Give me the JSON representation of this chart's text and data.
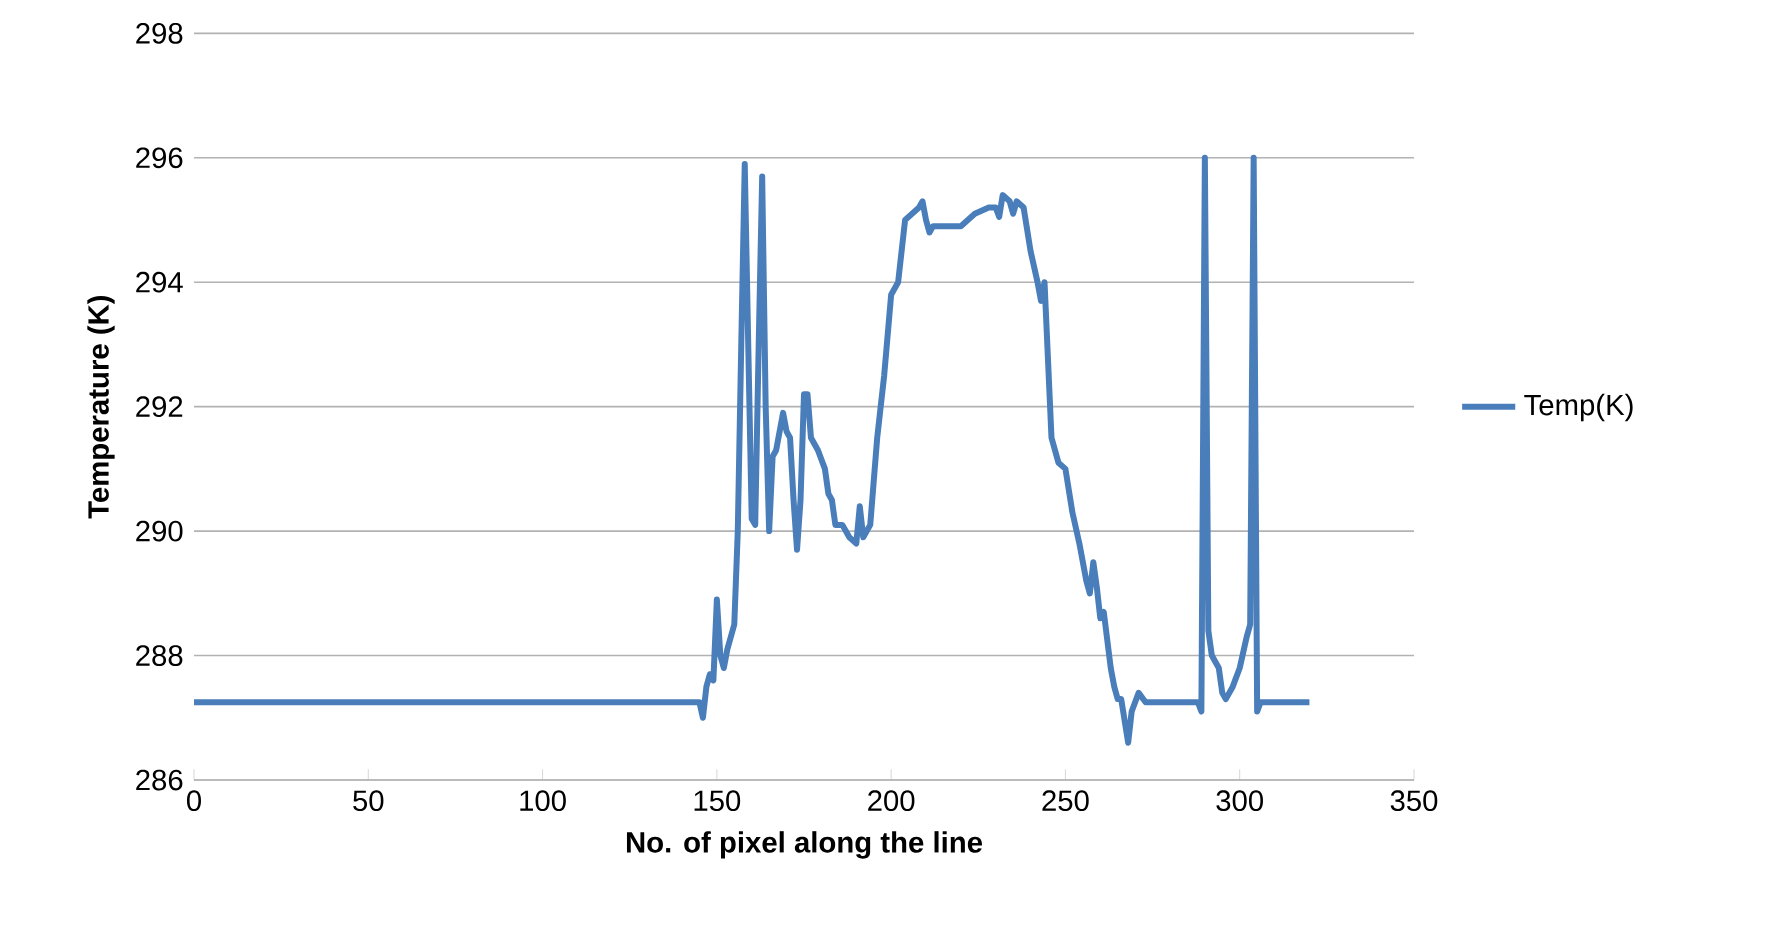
{
  "chart_data": {
    "type": "line",
    "xlabel": "No. of pixel along the line",
    "ylabel": "Temperature (K)",
    "xlim": [
      0,
      350
    ],
    "ylim": [
      286,
      298
    ],
    "xticks": [
      0,
      50,
      100,
      150,
      200,
      250,
      300,
      350
    ],
    "yticks": [
      286,
      288,
      290,
      292,
      294,
      296,
      298
    ],
    "grid": "y",
    "legend": "right",
    "marker": "none",
    "line_style": "solid",
    "series": [
      {
        "name": "Temp(K)",
        "color": "#4a7ebb",
        "x": [
          0,
          145,
          146,
          147,
          148,
          149,
          150,
          151,
          152,
          153,
          155,
          156,
          157,
          158,
          159,
          160,
          161,
          162,
          163,
          164,
          165,
          166,
          167,
          169,
          170,
          171,
          172,
          173,
          174,
          175,
          176,
          177,
          179,
          181,
          182,
          183,
          184,
          186,
          188,
          190,
          191,
          192,
          194,
          196,
          198,
          200,
          202,
          204,
          206,
          208,
          209,
          210,
          211,
          212,
          216,
          220,
          224,
          228,
          230,
          231,
          232,
          234,
          235,
          236,
          238,
          240,
          242,
          243,
          244,
          246,
          248,
          250,
          252,
          254,
          256,
          257,
          258,
          259,
          260,
          261,
          263,
          264,
          265,
          266,
          268,
          269,
          271,
          273,
          288,
          289,
          290,
          291,
          292,
          294,
          295,
          296,
          298,
          300,
          302,
          303,
          304,
          305,
          306,
          320
        ],
        "values": [
          287.25,
          287.25,
          287.0,
          287.5,
          287.7,
          287.6,
          288.9,
          288.0,
          287.8,
          288.1,
          288.5,
          290.0,
          293.0,
          295.9,
          293.0,
          290.2,
          290.1,
          293.0,
          295.7,
          292.0,
          290.0,
          291.2,
          291.3,
          291.9,
          291.6,
          291.5,
          290.5,
          289.7,
          290.5,
          292.2,
          292.2,
          291.5,
          291.3,
          291.0,
          290.6,
          290.5,
          290.1,
          290.1,
          289.9,
          289.8,
          290.4,
          289.9,
          290.1,
          291.5,
          292.5,
          293.8,
          294.0,
          295.0,
          295.1,
          295.2,
          295.3,
          295.0,
          294.8,
          294.9,
          294.9,
          294.9,
          295.1,
          295.2,
          295.2,
          295.05,
          295.4,
          295.3,
          295.1,
          295.3,
          295.2,
          294.5,
          294.0,
          293.7,
          294.0,
          291.5,
          291.1,
          291.0,
          290.3,
          289.8,
          289.2,
          289.0,
          289.5,
          289.1,
          288.6,
          288.7,
          287.8,
          287.5,
          287.3,
          287.3,
          286.6,
          287.1,
          287.4,
          287.25,
          287.25,
          287.1,
          296.0,
          288.4,
          288.0,
          287.8,
          287.4,
          287.3,
          287.5,
          287.8,
          288.3,
          288.5,
          296.0,
          287.1,
          287.25,
          287.25
        ]
      }
    ]
  }
}
